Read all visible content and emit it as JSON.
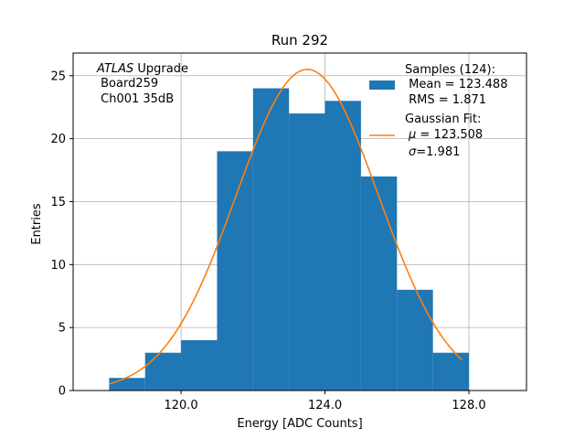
{
  "chart_data": {
    "type": "bar",
    "title": "Run 292",
    "xlabel": "Energy [ADC Counts]",
    "ylabel": "Entries",
    "xlim": [
      117,
      129.6
    ],
    "ylim": [
      0,
      26.8
    ],
    "grid": true,
    "x_ticks": [
      120,
      124,
      128
    ],
    "x_tick_labels": [
      "120.0",
      "124.0",
      "128.0"
    ],
    "y_ticks": [
      0,
      5,
      10,
      15,
      20,
      25
    ],
    "y_tick_labels": [
      "0",
      "5",
      "10",
      "15",
      "20",
      "25"
    ],
    "bins": [
      {
        "x0": 118,
        "x1": 119,
        "count": 1
      },
      {
        "x0": 119,
        "x1": 120,
        "count": 3
      },
      {
        "x0": 120,
        "x1": 121,
        "count": 4
      },
      {
        "x0": 121,
        "x1": 122,
        "count": 19
      },
      {
        "x0": 122,
        "x1": 123,
        "count": 24
      },
      {
        "x0": 123,
        "x1": 124,
        "count": 22
      },
      {
        "x0": 124,
        "x1": 125,
        "count": 23
      },
      {
        "x0": 125,
        "x1": 126,
        "count": 17
      },
      {
        "x0": 126,
        "x1": 127,
        "count": 8
      },
      {
        "x0": 127,
        "x1": 128,
        "count": 3
      }
    ],
    "fit": {
      "type": "gaussian",
      "amplitude": 25.5,
      "mu": 123.508,
      "sigma": 1.981,
      "x_range": [
        118,
        127.8
      ]
    },
    "colors": {
      "hist": "#1f77b4",
      "fit": "#ff7f0e",
      "grid": "#b0b0b0"
    },
    "info_box": {
      "line1_italic": "ATLAS",
      "line1_rest": " Upgrade",
      "line2": " Board259",
      "line3": " Ch001 35dB"
    },
    "legend": {
      "hist_line1": "Samples (124):",
      "hist_line2": " Mean = 123.488",
      "hist_line3": " RMS = 1.871",
      "fit_line1": "Gaussian Fit:",
      "fit_mu_symbol": "μ",
      "fit_mu_rest": " = 123.508",
      "fit_sigma_symbol": "σ",
      "fit_sigma_rest": "=1.981"
    }
  }
}
